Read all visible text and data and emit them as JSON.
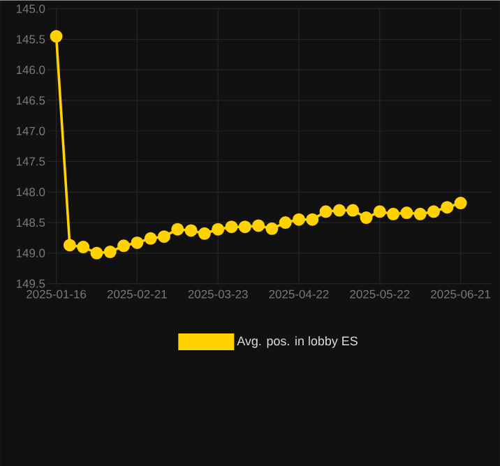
{
  "chart_data": {
    "type": "line",
    "categories": [
      "2025-01-16",
      null,
      null,
      null,
      null,
      null,
      "2025-02-21",
      null,
      null,
      null,
      null,
      null,
      "2025-03-23",
      null,
      null,
      null,
      null,
      null,
      "2025-04-22",
      null,
      null,
      null,
      null,
      null,
      "2025-05-22",
      null,
      null,
      null,
      null,
      null,
      "2025-06-21"
    ],
    "series": [
      {
        "name": "Avg. pos. in lobby ES",
        "color": "#ffd200",
        "values": [
          145.45,
          148.87,
          148.9,
          149.0,
          148.98,
          148.88,
          148.83,
          148.76,
          148.73,
          148.61,
          148.63,
          148.68,
          148.61,
          148.57,
          148.57,
          148.55,
          148.6,
          148.5,
          148.45,
          148.45,
          148.32,
          148.3,
          148.3,
          148.42,
          148.32,
          148.36,
          148.34,
          148.36,
          148.32,
          148.25,
          148.18
        ]
      }
    ],
    "ylim": [
      149.5,
      145.0
    ],
    "yticks": [
      {
        "value": 145.0,
        "label": "145.0"
      },
      145.5,
      {
        "value": 146.0,
        "label": "146.0"
      },
      146.5,
      {
        "value": 147.0,
        "label": "147.0"
      },
      147.5,
      {
        "value": 148.0,
        "label": "148.0"
      },
      148.5,
      {
        "value": 149.0,
        "label": "149.0"
      },
      149.5
    ],
    "grid": true,
    "legend": "bottom",
    "marker": "circle",
    "line_style": "solid"
  }
}
